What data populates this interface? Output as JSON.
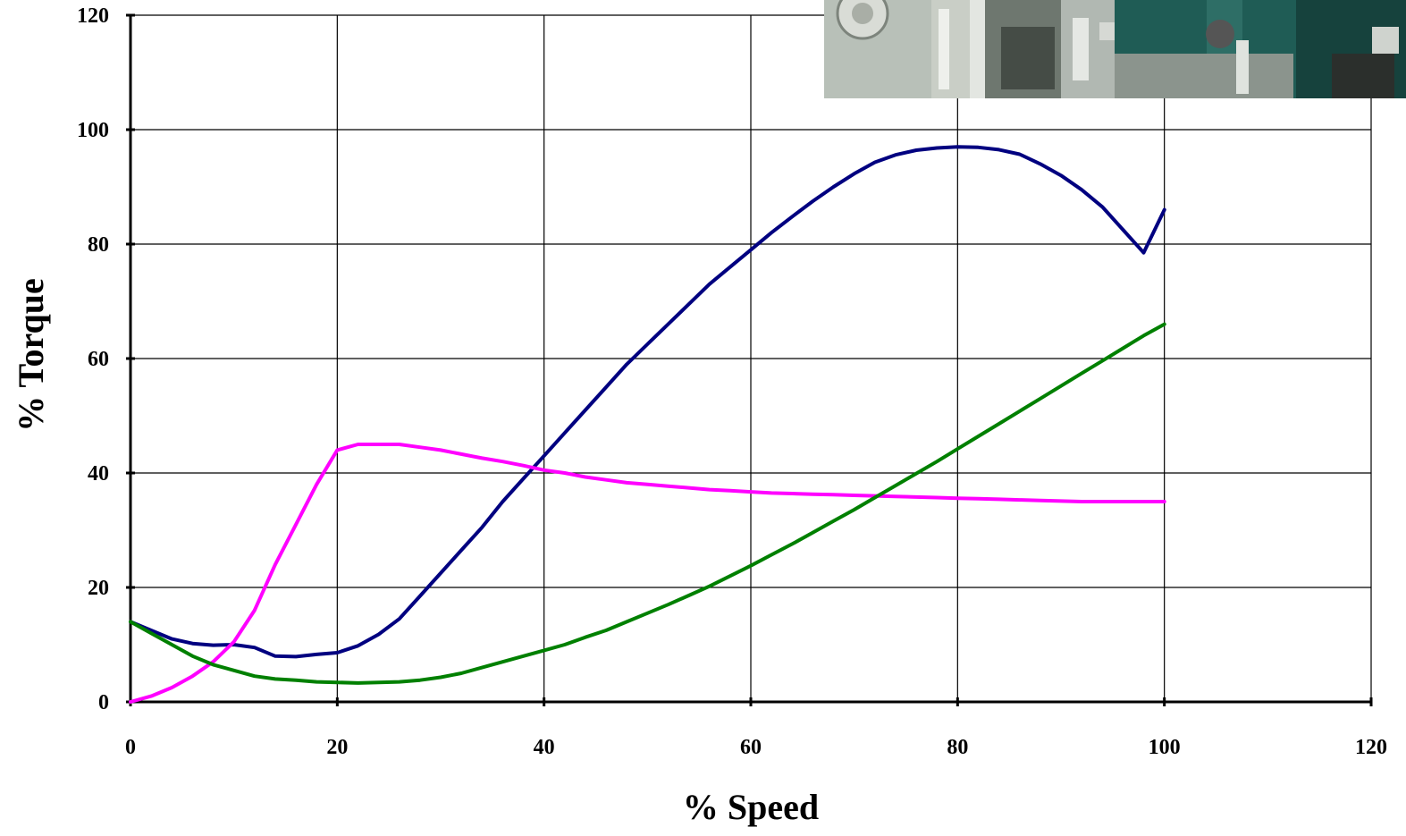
{
  "chart_data": {
    "type": "line",
    "title": "",
    "xlabel": "% Speed",
    "ylabel": "% Torque",
    "xlim": [
      0,
      120
    ],
    "ylim": [
      0,
      120
    ],
    "x_ticks": [
      0,
      20,
      40,
      60,
      80,
      100,
      120
    ],
    "y_ticks": [
      0,
      20,
      40,
      60,
      80,
      100,
      120
    ],
    "grid": true,
    "legend": "none",
    "series": [
      {
        "color": "#000080",
        "points": [
          [
            0,
            14
          ],
          [
            2,
            12.5
          ],
          [
            4,
            11
          ],
          [
            6,
            10.2
          ],
          [
            8,
            9.9
          ],
          [
            10,
            10
          ],
          [
            12,
            9.5
          ],
          [
            14,
            8
          ],
          [
            16,
            7.9
          ],
          [
            18,
            8.3
          ],
          [
            20,
            8.6
          ],
          [
            22,
            9.8
          ],
          [
            24,
            11.8
          ],
          [
            26,
            14.5
          ],
          [
            28,
            18.5
          ],
          [
            30,
            22.5
          ],
          [
            32,
            26.5
          ],
          [
            34,
            30.5
          ],
          [
            36,
            35
          ],
          [
            38,
            39
          ],
          [
            40,
            43
          ],
          [
            42,
            47
          ],
          [
            44,
            51
          ],
          [
            46,
            55
          ],
          [
            48,
            59
          ],
          [
            50,
            62.5
          ],
          [
            52,
            66
          ],
          [
            54,
            69.5
          ],
          [
            56,
            73
          ],
          [
            58,
            76
          ],
          [
            60,
            79
          ],
          [
            62,
            82
          ],
          [
            64,
            84.8
          ],
          [
            66,
            87.5
          ],
          [
            68,
            90
          ],
          [
            70,
            92.3
          ],
          [
            72,
            94.3
          ],
          [
            74,
            95.6
          ],
          [
            76,
            96.4
          ],
          [
            78,
            96.8
          ],
          [
            80,
            97
          ],
          [
            82,
            96.9
          ],
          [
            84,
            96.5
          ],
          [
            86,
            95.7
          ],
          [
            88,
            94
          ],
          [
            90,
            92
          ],
          [
            92,
            89.5
          ],
          [
            94,
            86.5
          ],
          [
            96,
            82.5
          ],
          [
            98,
            78.5
          ],
          [
            100,
            86
          ]
        ]
      },
      {
        "color": "#FF00FF",
        "points": [
          [
            0,
            0
          ],
          [
            2,
            1
          ],
          [
            4,
            2.5
          ],
          [
            6,
            4.5
          ],
          [
            8,
            7
          ],
          [
            10,
            10.5
          ],
          [
            12,
            16
          ],
          [
            14,
            24
          ],
          [
            16,
            31
          ],
          [
            18,
            38
          ],
          [
            20,
            44
          ],
          [
            22,
            45
          ],
          [
            24,
            45
          ],
          [
            26,
            45
          ],
          [
            28,
            44.5
          ],
          [
            30,
            44
          ],
          [
            32,
            43.3
          ],
          [
            34,
            42.6
          ],
          [
            36,
            42
          ],
          [
            38,
            41.3
          ],
          [
            40,
            40.5
          ],
          [
            42,
            40
          ],
          [
            44,
            39.3
          ],
          [
            46,
            38.8
          ],
          [
            48,
            38.3
          ],
          [
            50,
            38
          ],
          [
            52,
            37.7
          ],
          [
            54,
            37.4
          ],
          [
            56,
            37.1
          ],
          [
            58,
            36.9
          ],
          [
            60,
            36.7
          ],
          [
            62,
            36.5
          ],
          [
            64,
            36.4
          ],
          [
            66,
            36.3
          ],
          [
            68,
            36.2
          ],
          [
            70,
            36.1
          ],
          [
            72,
            36
          ],
          [
            74,
            35.9
          ],
          [
            76,
            35.8
          ],
          [
            78,
            35.7
          ],
          [
            80,
            35.6
          ],
          [
            82,
            35.5
          ],
          [
            84,
            35.4
          ],
          [
            86,
            35.3
          ],
          [
            88,
            35.2
          ],
          [
            90,
            35.1
          ],
          [
            92,
            35
          ],
          [
            94,
            35
          ],
          [
            96,
            35
          ],
          [
            98,
            35
          ],
          [
            100,
            35
          ]
        ]
      },
      {
        "color": "#008000",
        "points": [
          [
            0,
            14
          ],
          [
            2,
            12
          ],
          [
            4,
            10
          ],
          [
            6,
            8
          ],
          [
            8,
            6.5
          ],
          [
            10,
            5.5
          ],
          [
            12,
            4.5
          ],
          [
            14,
            4
          ],
          [
            16,
            3.8
          ],
          [
            18,
            3.5
          ],
          [
            20,
            3.4
          ],
          [
            22,
            3.3
          ],
          [
            24,
            3.4
          ],
          [
            26,
            3.5
          ],
          [
            28,
            3.8
          ],
          [
            30,
            4.3
          ],
          [
            32,
            5
          ],
          [
            34,
            6
          ],
          [
            36,
            7
          ],
          [
            38,
            8
          ],
          [
            40,
            9
          ],
          [
            42,
            10
          ],
          [
            44,
            11.3
          ],
          [
            46,
            12.5
          ],
          [
            48,
            14
          ],
          [
            50,
            15.5
          ],
          [
            52,
            17
          ],
          [
            54,
            18.6
          ],
          [
            56,
            20.2
          ],
          [
            58,
            22
          ],
          [
            60,
            23.8
          ],
          [
            62,
            25.7
          ],
          [
            64,
            27.6
          ],
          [
            66,
            29.6
          ],
          [
            68,
            31.6
          ],
          [
            70,
            33.6
          ],
          [
            72,
            35.7
          ],
          [
            74,
            37.8
          ],
          [
            76,
            39.9
          ],
          [
            78,
            42
          ],
          [
            80,
            44.2
          ],
          [
            82,
            46.4
          ],
          [
            84,
            48.6
          ],
          [
            86,
            50.8
          ],
          [
            88,
            53
          ],
          [
            90,
            55.2
          ],
          [
            92,
            57.4
          ],
          [
            94,
            59.6
          ],
          [
            96,
            61.8
          ],
          [
            98,
            64
          ],
          [
            100,
            66
          ]
        ]
      }
    ]
  }
}
